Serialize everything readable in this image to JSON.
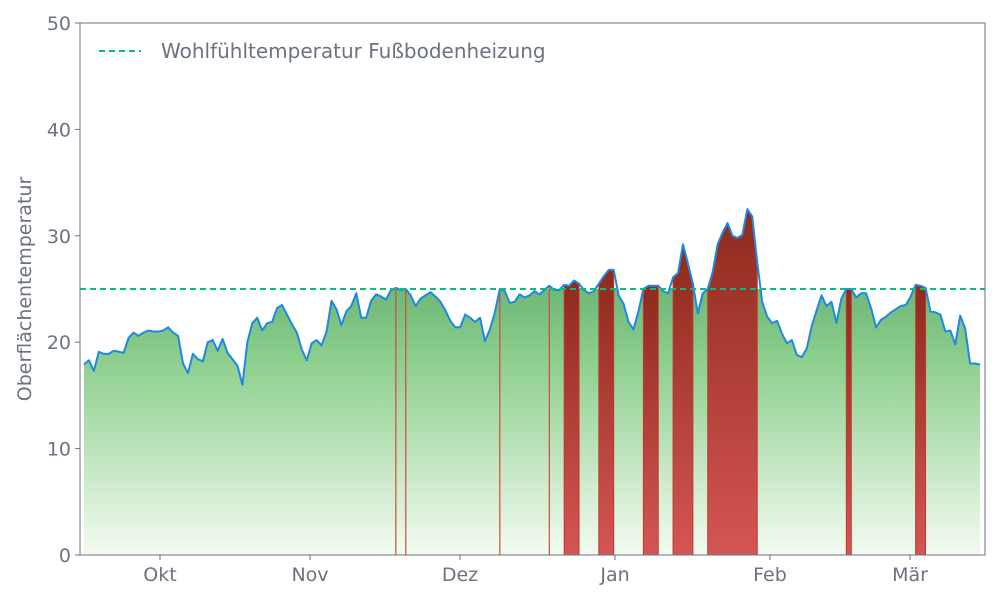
{
  "chart_data": {
    "type": "area",
    "title": "",
    "xlabel": "",
    "ylabel": "Oberflächentemperatur",
    "ylim": [
      0,
      50
    ],
    "y_ticks": [
      0,
      10,
      20,
      30,
      40,
      50
    ],
    "x_ticks": [
      {
        "label": "Okt",
        "day": 16
      },
      {
        "label": "Nov",
        "day": 46
      },
      {
        "label": "Dez",
        "day": 76
      },
      {
        "label": "Jan",
        "day": 107
      },
      {
        "label": "Feb",
        "day": 138
      },
      {
        "label": "Mär",
        "day": 166
      }
    ],
    "xlim": [
      0,
      181
    ],
    "legend_position": "top-left",
    "grid": false,
    "threshold": {
      "name": "Wohlfühltemperatur Fußbodenheizung",
      "value": 25,
      "color": "#10b981"
    },
    "series": [
      {
        "name": "",
        "line_color": "#1e88e5",
        "fill_below_color": "#5aad6e",
        "fill_above_color": "#c0392b",
        "values": [
          17.9,
          18.3,
          17.3,
          19.1,
          18.9,
          18.9,
          19.2,
          19.1,
          19.0,
          20.4,
          20.9,
          20.6,
          20.9,
          21.1,
          21.0,
          21.0,
          21.1,
          21.4,
          20.9,
          20.6,
          18.0,
          17.1,
          18.9,
          18.4,
          18.2,
          20.0,
          20.2,
          19.2,
          20.3,
          19.0,
          18.4,
          17.8,
          16.0,
          20.0,
          21.8,
          22.3,
          21.1,
          21.8,
          21.9,
          23.2,
          23.5,
          22.6,
          21.7,
          20.9,
          19.3,
          18.3,
          19.9,
          20.2,
          19.7,
          21.0,
          23.9,
          23.1,
          21.6,
          22.9,
          23.4,
          24.6,
          22.3,
          22.3,
          23.9,
          24.5,
          24.3,
          24.0,
          24.9,
          25.1,
          24.9,
          25.0,
          24.4,
          23.4,
          24.1,
          24.4,
          24.7,
          24.3,
          23.8,
          23.0,
          22.0,
          21.4,
          21.4,
          22.6,
          22.3,
          21.9,
          22.3,
          20.1,
          21.2,
          22.8,
          25.0,
          24.8,
          23.7,
          23.8,
          24.5,
          24.2,
          24.4,
          24.8,
          24.5,
          24.9,
          25.3,
          24.9,
          24.9,
          25.4,
          25.3,
          25.8,
          25.5,
          24.9,
          24.6,
          24.8,
          25.5,
          26.2,
          26.8,
          26.8,
          24.4,
          23.6,
          21.9,
          21.2,
          22.9,
          25.0,
          25.3,
          25.3,
          25.3,
          24.8,
          24.6,
          26.1,
          26.5,
          29.2,
          27.4,
          25.5,
          22.7,
          24.6,
          25.0,
          26.6,
          29.2,
          30.3,
          31.2,
          30.0,
          29.8,
          30.1,
          32.5,
          31.8,
          27.5,
          23.8,
          22.4,
          21.8,
          22.0,
          20.8,
          19.9,
          20.2,
          18.8,
          18.6,
          19.4,
          21.5,
          23.0,
          24.4,
          23.4,
          23.8,
          21.8,
          24.1,
          25.0,
          25.0,
          24.2,
          24.6,
          24.6,
          23.2,
          21.4,
          22.1,
          22.4,
          22.8,
          23.1,
          23.4,
          23.5,
          24.3,
          25.4,
          25.3,
          25.1,
          22.9,
          22.8,
          22.6,
          21.0,
          21.1,
          19.8,
          22.5,
          21.3,
          18.0,
          18.0,
          17.9
        ]
      }
    ]
  }
}
